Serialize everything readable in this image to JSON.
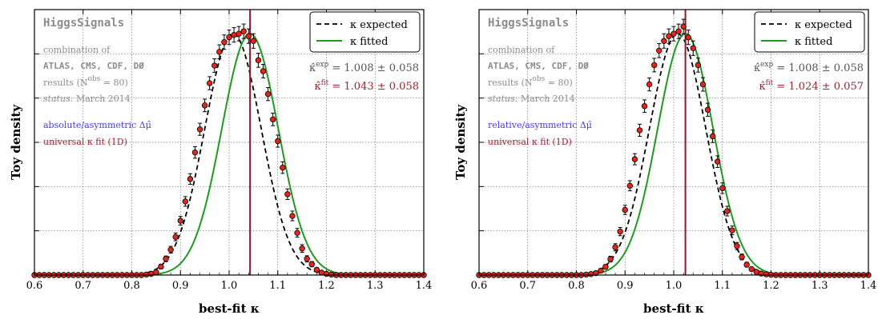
{
  "figure": {
    "xlabel": "best-fit κ",
    "ylabel": "Toy density",
    "legend": {
      "expected_label": "κ expected",
      "fitted_label": "κ fitted"
    },
    "colors": {
      "expected": "#000000",
      "fitted": "#1f9a1f",
      "points": "#e3261d",
      "vline": "#8b1a2b",
      "info_grey": "#8c8c8c",
      "blue": "#4b3fe0",
      "red_text": "#9e2233"
    }
  },
  "chart_data": [
    {
      "type": "line",
      "title": "",
      "xlabel": "best-fit κ",
      "ylabel": "Toy density",
      "xlim": [
        0.6,
        1.4
      ],
      "xticks": [
        "0.6",
        "0.7",
        "0.8",
        "0.9",
        "1.0",
        "1.1",
        "1.2",
        "1.3",
        "1.4"
      ],
      "ylim": [
        0,
        1.1
      ],
      "grid": true,
      "legend_position": "top-right",
      "info": {
        "title": "HiggsSignals",
        "line1": "combination of",
        "line2": "ATLAS, CMS, CDF, DØ",
        "line3": "results (N^obs = 80)",
        "status_label": "status:",
        "status_value": "March 2014",
        "method": "absolute/asymmetric Δμ̂",
        "fit_type": "universal κ fit (1D)"
      },
      "expected_text": "κ̂^exp = 1.008 ± 0.058",
      "fitted_text": "κ̂^fit = 1.043 ± 0.058",
      "vline": 1.043,
      "series": [
        {
          "name": "κ expected",
          "kind": "gaussian",
          "mean": 1.008,
          "sigma": 0.058,
          "style": "dashed"
        },
        {
          "name": "κ fitted",
          "kind": "gaussian",
          "mean": 1.043,
          "sigma": 0.058,
          "style": "solid"
        }
      ],
      "points": {
        "x": [
          0.6,
          0.61,
          0.62,
          0.63,
          0.64,
          0.65,
          0.66,
          0.67,
          0.68,
          0.69,
          0.7,
          0.71,
          0.72,
          0.73,
          0.74,
          0.75,
          0.76,
          0.77,
          0.78,
          0.79,
          0.8,
          0.81,
          0.82,
          0.83,
          0.84,
          0.85,
          0.86,
          0.87,
          0.88,
          0.89,
          0.9,
          0.91,
          0.92,
          0.93,
          0.94,
          0.95,
          0.96,
          0.97,
          0.98,
          0.99,
          1.0,
          1.01,
          1.02,
          1.03,
          1.04,
          1.05,
          1.06,
          1.07,
          1.08,
          1.09,
          1.1,
          1.11,
          1.12,
          1.13,
          1.14,
          1.15,
          1.16,
          1.17,
          1.18,
          1.19,
          1.2,
          1.21,
          1.22,
          1.23,
          1.24,
          1.25,
          1.26,
          1.27,
          1.28,
          1.29,
          1.3,
          1.31,
          1.32,
          1.33,
          1.34,
          1.35,
          1.36,
          1.37,
          1.38,
          1.39,
          1.4
        ],
        "y": [
          0,
          0,
          0,
          0,
          0,
          0,
          0,
          0,
          0,
          0,
          0,
          0,
          0,
          0,
          0,
          0,
          0,
          0,
          0,
          0,
          0,
          0,
          0,
          0.002,
          0.005,
          0.012,
          0.035,
          0.067,
          0.105,
          0.158,
          0.225,
          0.305,
          0.398,
          0.508,
          0.604,
          0.703,
          0.795,
          0.868,
          0.925,
          0.965,
          0.985,
          0.995,
          1.0,
          1.01,
          0.99,
          0.97,
          0.89,
          0.845,
          0.75,
          0.645,
          0.555,
          0.445,
          0.335,
          0.245,
          0.175,
          0.11,
          0.067,
          0.045,
          0.022,
          0.01,
          0.005,
          0.002,
          0,
          0,
          0,
          0,
          0,
          0,
          0,
          0,
          0,
          0,
          0,
          0,
          0,
          0,
          0,
          0,
          0,
          0,
          0
        ],
        "err": [
          0,
          0,
          0,
          0,
          0,
          0,
          0,
          0,
          0,
          0,
          0,
          0,
          0,
          0,
          0,
          0,
          0,
          0,
          0,
          0,
          0,
          0,
          0,
          0.003,
          0.004,
          0.006,
          0.01,
          0.012,
          0.014,
          0.016,
          0.018,
          0.02,
          0.022,
          0.024,
          0.025,
          0.026,
          0.027,
          0.028,
          0.029,
          0.03,
          0.03,
          0.03,
          0.03,
          0.03,
          0.03,
          0.03,
          0.029,
          0.028,
          0.027,
          0.026,
          0.025,
          0.024,
          0.022,
          0.02,
          0.018,
          0.016,
          0.013,
          0.011,
          0.008,
          0.006,
          0.004,
          0.003,
          0,
          0,
          0,
          0,
          0,
          0,
          0,
          0,
          0,
          0,
          0,
          0,
          0,
          0,
          0,
          0,
          0,
          0,
          0
        ]
      }
    },
    {
      "type": "line",
      "title": "",
      "xlabel": "best-fit κ",
      "ylabel": "Toy density",
      "xlim": [
        0.6,
        1.4
      ],
      "xticks": [
        "0.6",
        "0.7",
        "0.8",
        "0.9",
        "1.0",
        "1.1",
        "1.2",
        "1.3",
        "1.4"
      ],
      "ylim": [
        0,
        1.1
      ],
      "grid": true,
      "legend_position": "top-right",
      "info": {
        "title": "HiggsSignals",
        "line1": "combination of",
        "line2": "ATLAS, CMS, CDF, DØ",
        "line3": "results (N^obs = 80)",
        "status_label": "status:",
        "status_value": "March 2014",
        "method": "relative/asymmetric Δμ̂",
        "fit_type": "universal κ fit (1D)"
      },
      "expected_text": "κ̂^exp = 1.008 ± 0.058",
      "fitted_text": "κ̂^fit = 1.024 ± 0.057",
      "vline": 1.024,
      "series": [
        {
          "name": "κ expected",
          "kind": "gaussian",
          "mean": 1.008,
          "sigma": 0.058,
          "style": "dashed"
        },
        {
          "name": "κ fitted",
          "kind": "gaussian",
          "mean": 1.024,
          "sigma": 0.057,
          "style": "solid"
        }
      ],
      "points": {
        "x": [
          0.6,
          0.61,
          0.62,
          0.63,
          0.64,
          0.65,
          0.66,
          0.67,
          0.68,
          0.69,
          0.7,
          0.71,
          0.72,
          0.73,
          0.74,
          0.75,
          0.76,
          0.77,
          0.78,
          0.79,
          0.8,
          0.81,
          0.82,
          0.83,
          0.84,
          0.85,
          0.86,
          0.87,
          0.88,
          0.89,
          0.9,
          0.91,
          0.92,
          0.93,
          0.94,
          0.95,
          0.96,
          0.97,
          0.98,
          0.99,
          1.0,
          1.01,
          1.02,
          1.03,
          1.04,
          1.05,
          1.06,
          1.07,
          1.08,
          1.09,
          1.1,
          1.11,
          1.12,
          1.13,
          1.14,
          1.15,
          1.16,
          1.17,
          1.18,
          1.19,
          1.2,
          1.21,
          1.22,
          1.23,
          1.24,
          1.25,
          1.26,
          1.27,
          1.28,
          1.29,
          1.3,
          1.31,
          1.32,
          1.33,
          1.34,
          1.35,
          1.36,
          1.37,
          1.38,
          1.39,
          1.4
        ],
        "y": [
          0,
          0,
          0,
          0,
          0,
          0,
          0,
          0,
          0,
          0,
          0,
          0,
          0,
          0,
          0,
          0,
          0,
          0,
          0,
          0,
          0,
          0,
          0.002,
          0.004,
          0.008,
          0.018,
          0.034,
          0.066,
          0.115,
          0.18,
          0.27,
          0.37,
          0.48,
          0.6,
          0.7,
          0.79,
          0.87,
          0.93,
          0.97,
          0.99,
          1.0,
          1.01,
          1.03,
          0.985,
          0.94,
          0.87,
          0.79,
          0.685,
          0.575,
          0.47,
          0.36,
          0.265,
          0.185,
          0.12,
          0.075,
          0.043,
          0.025,
          0.013,
          0.006,
          0.003,
          0.001,
          0,
          0,
          0,
          0,
          0,
          0,
          0,
          0,
          0,
          0,
          0,
          0,
          0,
          0,
          0,
          0,
          0,
          0,
          0,
          0
        ],
        "err": [
          0,
          0,
          0,
          0,
          0,
          0,
          0,
          0,
          0,
          0,
          0,
          0,
          0,
          0,
          0,
          0,
          0,
          0,
          0,
          0,
          0,
          0,
          0.002,
          0.003,
          0.004,
          0.006,
          0.009,
          0.012,
          0.015,
          0.017,
          0.019,
          0.021,
          0.023,
          0.025,
          0.026,
          0.027,
          0.028,
          0.029,
          0.03,
          0.03,
          0.03,
          0.03,
          0.03,
          0.03,
          0.03,
          0.029,
          0.028,
          0.027,
          0.026,
          0.024,
          0.022,
          0.02,
          0.018,
          0.015,
          0.012,
          0.01,
          0.007,
          0.005,
          0.004,
          0.003,
          0.002,
          0,
          0,
          0,
          0,
          0,
          0,
          0,
          0,
          0,
          0,
          0,
          0,
          0,
          0,
          0,
          0,
          0,
          0,
          0,
          0
        ]
      }
    }
  ]
}
